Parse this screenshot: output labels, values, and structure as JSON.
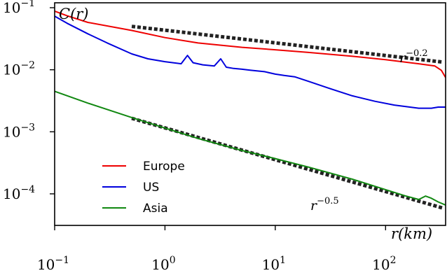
{
  "chart_data": {
    "type": "line",
    "xscale": "log",
    "yscale": "log",
    "xlim": [
      0.1,
      350
    ],
    "ylim": [
      3.1e-05,
      0.12
    ],
    "xlabel": "r(km)",
    "ylabel": "C(r)",
    "grid": false,
    "legend_position": "center-left",
    "xticks": [
      {
        "base": "10",
        "exp": "−1",
        "value": 0.1
      },
      {
        "base": "10",
        "exp": "0",
        "value": 1
      },
      {
        "base": "10",
        "exp": "1",
        "value": 10
      },
      {
        "base": "10",
        "exp": "2",
        "value": 100
      }
    ],
    "yticks": [
      {
        "base": "10",
        "exp": "−1",
        "value": 0.1
      },
      {
        "base": "10",
        "exp": "−2",
        "value": 0.01
      },
      {
        "base": "10",
        "exp": "−3",
        "value": 0.001
      },
      {
        "base": "10",
        "exp": "−4",
        "value": 0.0001
      }
    ],
    "series": [
      {
        "name": "Europe",
        "color": "#ee0000",
        "x": [
          0.1,
          0.13,
          0.2,
          0.5,
          1,
          2,
          5,
          10,
          20,
          50,
          100,
          200,
          280,
          320,
          350
        ],
        "y": [
          0.088,
          0.074,
          0.058,
          0.043,
          0.033,
          0.027,
          0.023,
          0.021,
          0.019,
          0.0165,
          0.0145,
          0.0125,
          0.0115,
          0.0098,
          0.0075
        ]
      },
      {
        "name": "US",
        "color": "#0000dd",
        "x": [
          0.1,
          0.13,
          0.2,
          0.3,
          0.5,
          0.7,
          1,
          1.4,
          1.6,
          1.8,
          2.2,
          2.8,
          3.2,
          3.6,
          4.2,
          5,
          6,
          8,
          10,
          12,
          15,
          20,
          30,
          50,
          80,
          120,
          200,
          260,
          300,
          350
        ],
        "y": [
          0.073,
          0.056,
          0.038,
          0.027,
          0.018,
          0.015,
          0.0135,
          0.0125,
          0.017,
          0.013,
          0.012,
          0.0115,
          0.015,
          0.011,
          0.0105,
          0.0102,
          0.0098,
          0.0093,
          0.0085,
          0.0081,
          0.0077,
          0.0065,
          0.0051,
          0.0038,
          0.0031,
          0.0027,
          0.0024,
          0.0024,
          0.0025,
          0.0025
        ]
      },
      {
        "name": "Asia",
        "color": "#118811",
        "x": [
          0.1,
          0.2,
          0.5,
          1,
          2,
          5,
          10,
          20,
          50,
          100,
          150,
          200,
          230,
          260,
          300,
          350
        ],
        "y": [
          0.0045,
          0.0029,
          0.0017,
          0.00115,
          0.00078,
          0.0005,
          0.00037,
          0.00027,
          0.000172,
          0.000117,
          9.3e-05,
          8.1e-05,
          9.2e-05,
          8.5e-05,
          7.4e-05,
          6.6e-05
        ]
      }
    ],
    "reference_lines": [
      {
        "label_base": "r",
        "label_exp": "−0.2",
        "x": [
          0.5,
          330
        ],
        "y": [
          0.05,
          0.0133
        ]
      },
      {
        "label_base": "r",
        "label_exp": "−0.5",
        "x": [
          0.5,
          330
        ],
        "y": [
          0.00165,
          5.9e-05
        ]
      }
    ]
  }
}
